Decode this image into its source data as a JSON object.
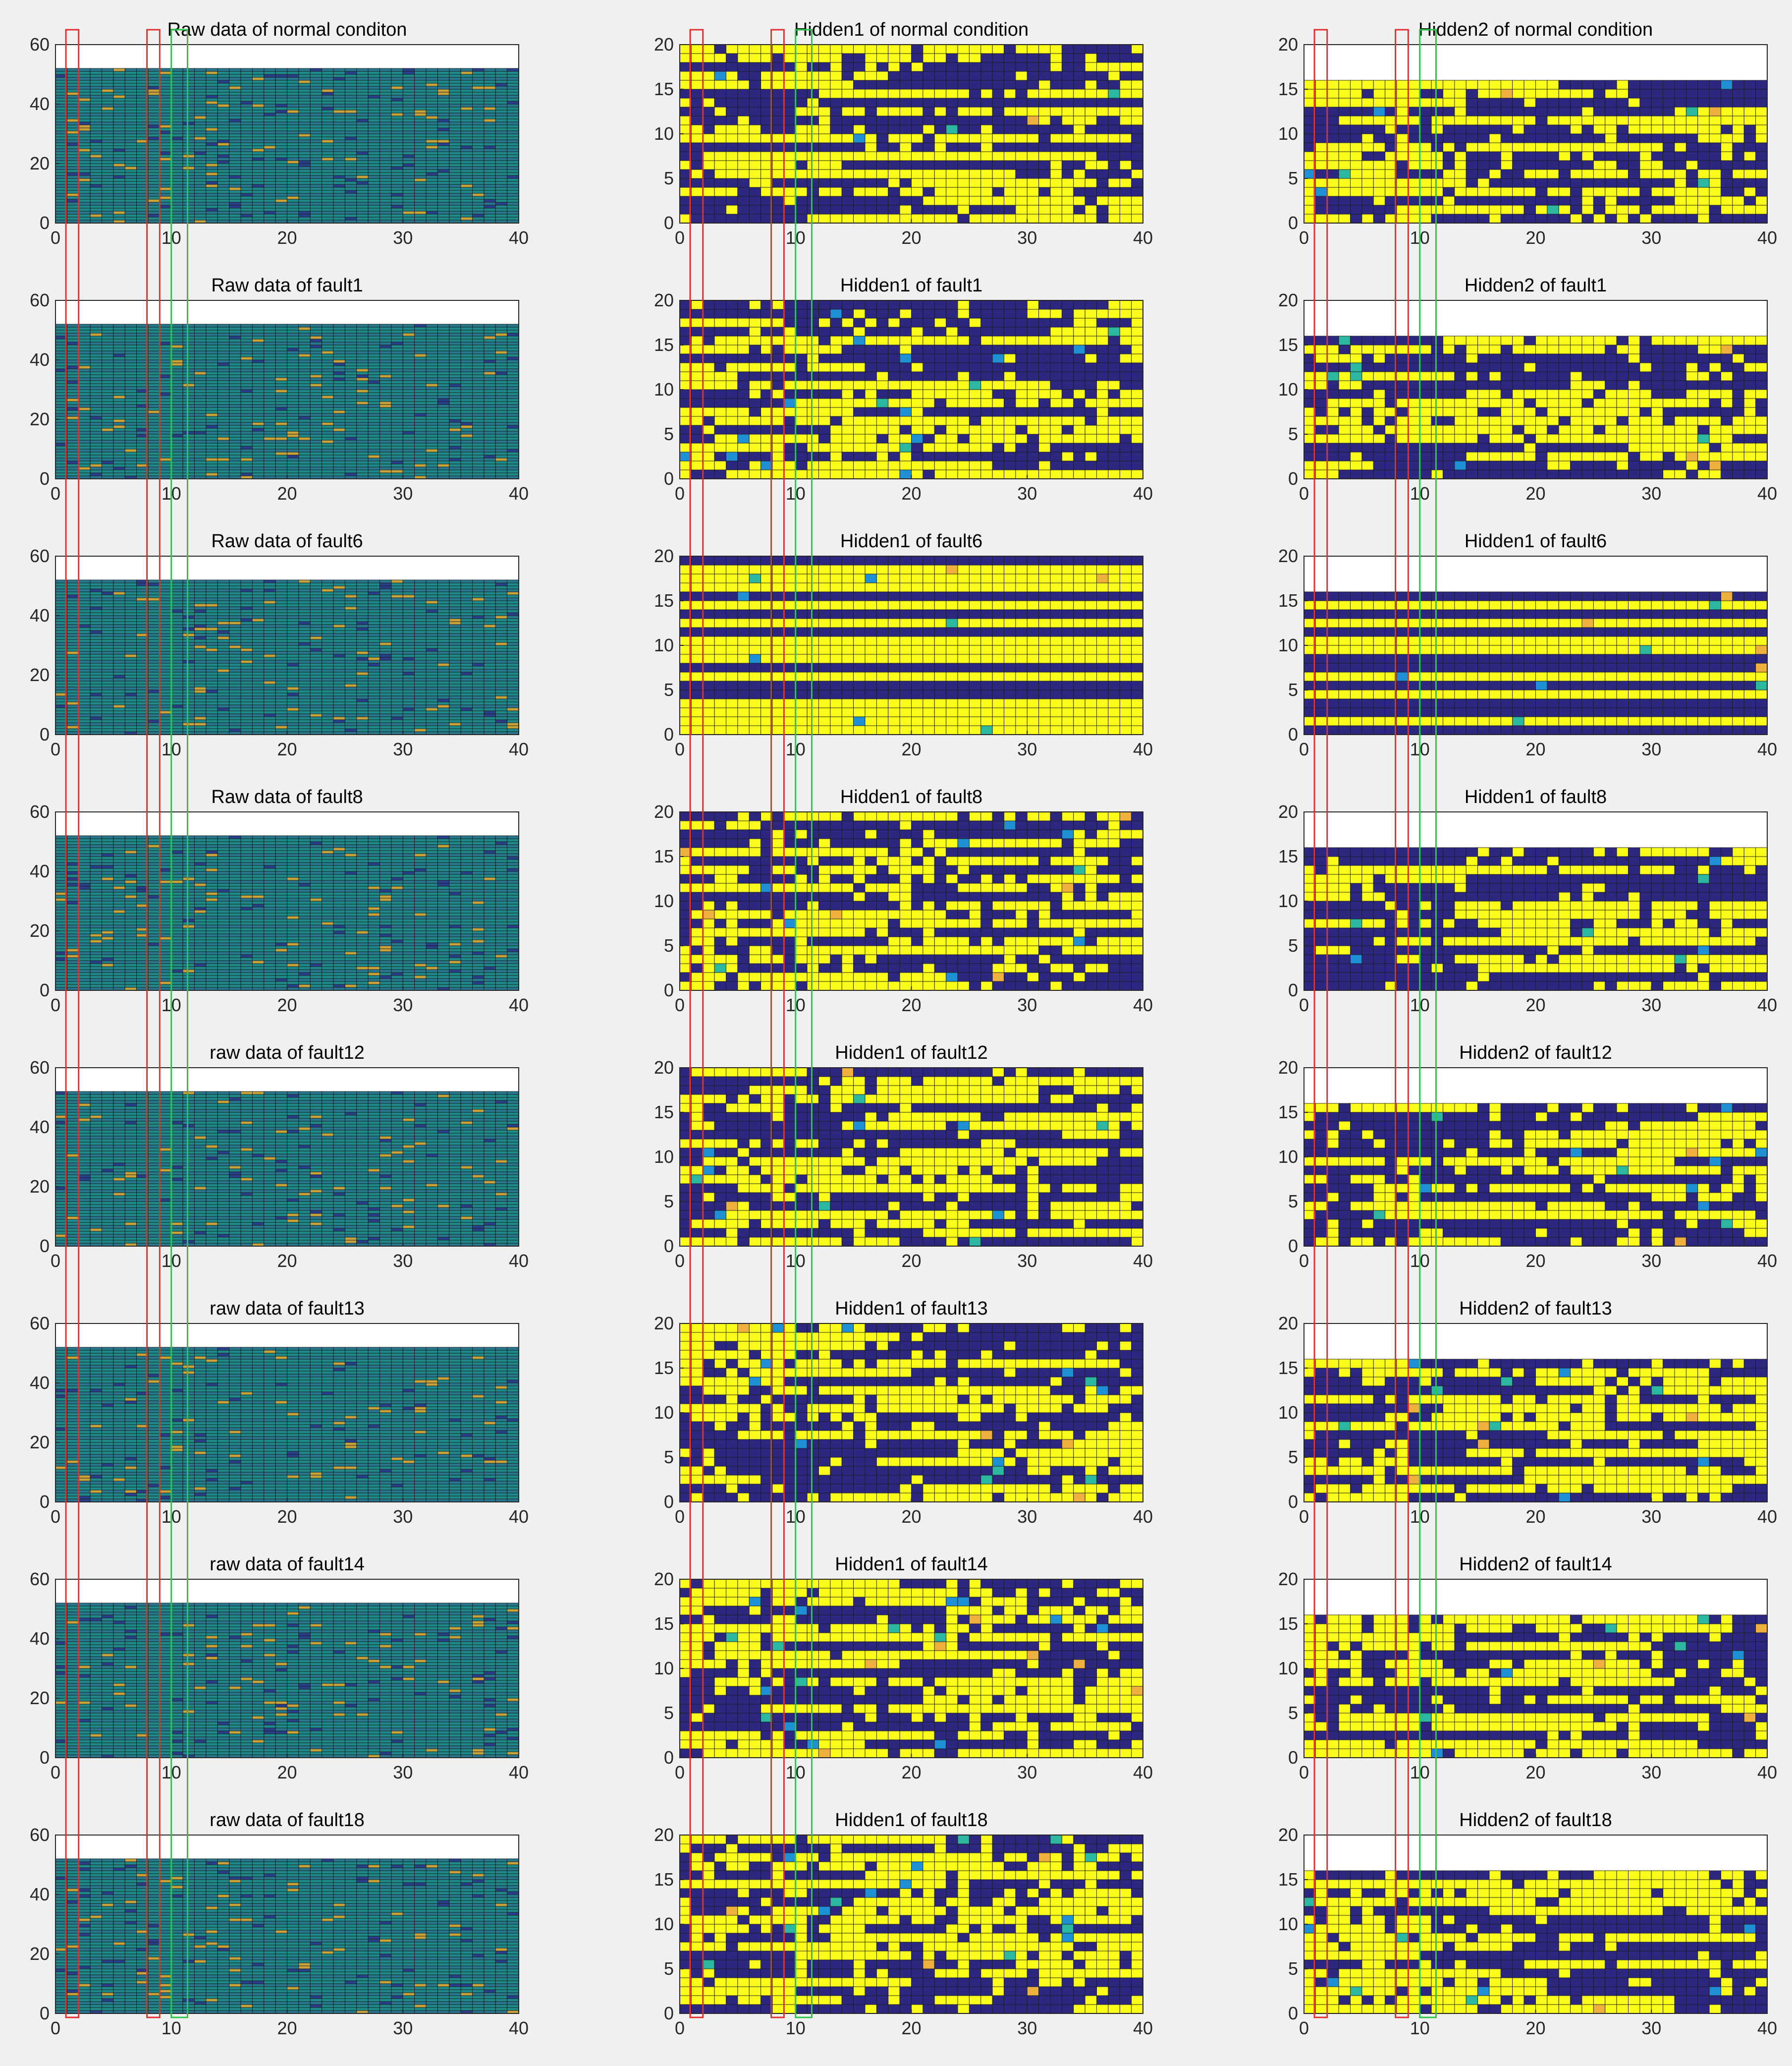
{
  "colors": {
    "figure_bg": "#f0f0f0",
    "axes_bg": "#ffffff",
    "cell_edge": "#1a1a1a",
    "raw_base": "#1e8a8a",
    "raw_alt": "#27778f",
    "raw_dark": "#2a3f8c",
    "raw_hot": "#c8a23a",
    "hidden_on": "#fcfc1c",
    "hidden_off": "#2c2880",
    "hidden_mid_blue": "#1f8fd6",
    "hidden_mid_teal": "#2bb7a0",
    "hidden_mid_orange": "#f0b040",
    "box_red": "#e03030",
    "box_green": "#2ec44a"
  },
  "chart_data": [
    {
      "type": "heatmap",
      "title": "Raw data of normal conditon",
      "xlim": [
        0,
        40
      ],
      "ylim": [
        0,
        60
      ],
      "xticks": [
        0,
        10,
        20,
        30,
        40
      ],
      "yticks": [
        0,
        20,
        40,
        60
      ],
      "cols": 40,
      "rows": 52,
      "kind": "raw",
      "seed": 11
    },
    {
      "type": "heatmap",
      "title": "Hidden1 of normal condition",
      "xlim": [
        0,
        40
      ],
      "ylim": [
        0,
        20
      ],
      "xticks": [
        0,
        10,
        20,
        30,
        40
      ],
      "yticks": [
        0,
        5,
        10,
        15,
        20
      ],
      "cols": 40,
      "rows": 20,
      "kind": "hidden",
      "seed": 21
    },
    {
      "type": "heatmap",
      "title": "Hidden2 of normal condition",
      "xlim": [
        0,
        40
      ],
      "ylim": [
        0,
        20
      ],
      "xticks": [
        0,
        10,
        20,
        30,
        40
      ],
      "yticks": [
        0,
        5,
        10,
        15,
        20
      ],
      "cols": 40,
      "rows": 16,
      "kind": "hidden",
      "seed": 31
    },
    {
      "type": "heatmap",
      "title": "Raw data of fault1",
      "xlim": [
        0,
        40
      ],
      "ylim": [
        0,
        60
      ],
      "xticks": [
        0,
        10,
        20,
        30,
        40
      ],
      "yticks": [
        0,
        20,
        40,
        60
      ],
      "cols": 40,
      "rows": 52,
      "kind": "raw",
      "seed": 12
    },
    {
      "type": "heatmap",
      "title": "Hidden1 of fault1",
      "xlim": [
        0,
        40
      ],
      "ylim": [
        0,
        20
      ],
      "xticks": [
        0,
        10,
        20,
        30,
        40
      ],
      "yticks": [
        0,
        5,
        10,
        15,
        20
      ],
      "cols": 40,
      "rows": 20,
      "kind": "hidden",
      "seed": 22
    },
    {
      "type": "heatmap",
      "title": "Hidden2 of fault1",
      "xlim": [
        0,
        40
      ],
      "ylim": [
        0,
        20
      ],
      "xticks": [
        0,
        10,
        20,
        30,
        40
      ],
      "yticks": [
        0,
        5,
        10,
        15,
        20
      ],
      "cols": 40,
      "rows": 16,
      "kind": "hidden",
      "seed": 32
    },
    {
      "type": "heatmap",
      "title": "Raw data of fault6",
      "xlim": [
        0,
        40
      ],
      "ylim": [
        0,
        60
      ],
      "xticks": [
        0,
        10,
        20,
        30,
        40
      ],
      "yticks": [
        0,
        20,
        40,
        60
      ],
      "cols": 40,
      "rows": 52,
      "kind": "raw",
      "seed": 13
    },
    {
      "type": "heatmap",
      "title": "Hidden1 of fault6",
      "xlim": [
        0,
        40
      ],
      "ylim": [
        0,
        20
      ],
      "xticks": [
        0,
        10,
        20,
        30,
        40
      ],
      "yticks": [
        0,
        5,
        10,
        15,
        20
      ],
      "cols": 40,
      "rows": 20,
      "kind": "hidden",
      "seed": 23,
      "striped": true
    },
    {
      "type": "heatmap",
      "title": "Hidden1 of fault6",
      "xlim": [
        0,
        40
      ],
      "ylim": [
        0,
        20
      ],
      "xticks": [
        0,
        10,
        20,
        30,
        40
      ],
      "yticks": [
        0,
        5,
        10,
        15,
        20
      ],
      "cols": 40,
      "rows": 16,
      "kind": "hidden",
      "seed": 33,
      "striped": true
    },
    {
      "type": "heatmap",
      "title": "Raw data of fault8",
      "xlim": [
        0,
        40
      ],
      "ylim": [
        0,
        60
      ],
      "xticks": [
        0,
        10,
        20,
        30,
        40
      ],
      "yticks": [
        0,
        20,
        40,
        60
      ],
      "cols": 40,
      "rows": 52,
      "kind": "raw",
      "seed": 14
    },
    {
      "type": "heatmap",
      "title": "Hidden1 of fault8",
      "xlim": [
        0,
        40
      ],
      "ylim": [
        0,
        20
      ],
      "xticks": [
        0,
        10,
        20,
        30,
        40
      ],
      "yticks": [
        0,
        5,
        10,
        15,
        20
      ],
      "cols": 40,
      "rows": 20,
      "kind": "hidden",
      "seed": 24
    },
    {
      "type": "heatmap",
      "title": "Hidden1 of fault8",
      "xlim": [
        0,
        40
      ],
      "ylim": [
        0,
        20
      ],
      "xticks": [
        0,
        10,
        20,
        30,
        40
      ],
      "yticks": [
        0,
        5,
        10,
        15,
        20
      ],
      "cols": 40,
      "rows": 16,
      "kind": "hidden",
      "seed": 34
    },
    {
      "type": "heatmap",
      "title": "raw data of fault12",
      "xlim": [
        0,
        40
      ],
      "ylim": [
        0,
        60
      ],
      "xticks": [
        0,
        10,
        20,
        30,
        40
      ],
      "yticks": [
        0,
        20,
        40,
        60
      ],
      "cols": 40,
      "rows": 52,
      "kind": "raw",
      "seed": 15
    },
    {
      "type": "heatmap",
      "title": "Hidden1 of fault12",
      "xlim": [
        0,
        40
      ],
      "ylim": [
        0,
        20
      ],
      "xticks": [
        0,
        10,
        20,
        30,
        40
      ],
      "yticks": [
        0,
        5,
        10,
        15,
        20
      ],
      "cols": 40,
      "rows": 20,
      "kind": "hidden",
      "seed": 25
    },
    {
      "type": "heatmap",
      "title": "Hidden2 of fault12",
      "xlim": [
        0,
        40
      ],
      "ylim": [
        0,
        20
      ],
      "xticks": [
        0,
        10,
        20,
        30,
        40
      ],
      "yticks": [
        0,
        5,
        10,
        15,
        20
      ],
      "cols": 40,
      "rows": 16,
      "kind": "hidden",
      "seed": 35
    },
    {
      "type": "heatmap",
      "title": "raw data of fault13",
      "xlim": [
        0,
        40
      ],
      "ylim": [
        0,
        60
      ],
      "xticks": [
        0,
        10,
        20,
        30,
        40
      ],
      "yticks": [
        0,
        20,
        40,
        60
      ],
      "cols": 40,
      "rows": 52,
      "kind": "raw",
      "seed": 16
    },
    {
      "type": "heatmap",
      "title": "Hidden1 of fault13",
      "xlim": [
        0,
        40
      ],
      "ylim": [
        0,
        20
      ],
      "xticks": [
        0,
        10,
        20,
        30,
        40
      ],
      "yticks": [
        0,
        5,
        10,
        15,
        20
      ],
      "cols": 40,
      "rows": 20,
      "kind": "hidden",
      "seed": 26
    },
    {
      "type": "heatmap",
      "title": "Hidden2 of fault13",
      "xlim": [
        0,
        40
      ],
      "ylim": [
        0,
        20
      ],
      "xticks": [
        0,
        10,
        20,
        30,
        40
      ],
      "yticks": [
        0,
        5,
        10,
        15,
        20
      ],
      "cols": 40,
      "rows": 16,
      "kind": "hidden",
      "seed": 36
    },
    {
      "type": "heatmap",
      "title": "raw data of fault14",
      "xlim": [
        0,
        40
      ],
      "ylim": [
        0,
        60
      ],
      "xticks": [
        0,
        10,
        20,
        30,
        40
      ],
      "yticks": [
        0,
        20,
        40,
        60
      ],
      "cols": 40,
      "rows": 52,
      "kind": "raw",
      "seed": 17
    },
    {
      "type": "heatmap",
      "title": "Hidden1 of fault14",
      "xlim": [
        0,
        40
      ],
      "ylim": [
        0,
        20
      ],
      "xticks": [
        0,
        10,
        20,
        30,
        40
      ],
      "yticks": [
        0,
        5,
        10,
        15,
        20
      ],
      "cols": 40,
      "rows": 20,
      "kind": "hidden",
      "seed": 27
    },
    {
      "type": "heatmap",
      "title": "Hidden2 of fault14",
      "xlim": [
        0,
        40
      ],
      "ylim": [
        0,
        20
      ],
      "xticks": [
        0,
        10,
        20,
        30,
        40
      ],
      "yticks": [
        0,
        5,
        10,
        15,
        20
      ],
      "cols": 40,
      "rows": 16,
      "kind": "hidden",
      "seed": 37
    },
    {
      "type": "heatmap",
      "title": "raw data of fault18",
      "xlim": [
        0,
        40
      ],
      "ylim": [
        0,
        60
      ],
      "xticks": [
        0,
        10,
        20,
        30,
        40
      ],
      "yticks": [
        0,
        20,
        40,
        60
      ],
      "cols": 40,
      "rows": 52,
      "kind": "raw",
      "seed": 18
    },
    {
      "type": "heatmap",
      "title": "Hidden1 of fault18",
      "xlim": [
        0,
        40
      ],
      "ylim": [
        0,
        20
      ],
      "xticks": [
        0,
        10,
        20,
        30,
        40
      ],
      "yticks": [
        0,
        5,
        10,
        15,
        20
      ],
      "cols": 40,
      "rows": 20,
      "kind": "hidden",
      "seed": 28
    },
    {
      "type": "heatmap",
      "title": "Hidden2 of fault18",
      "xlim": [
        0,
        40
      ],
      "ylim": [
        0,
        20
      ],
      "xticks": [
        0,
        10,
        20,
        30,
        40
      ],
      "yticks": [
        0,
        5,
        10,
        15,
        20
      ],
      "cols": 40,
      "rows": 16,
      "kind": "hidden",
      "seed": 38
    }
  ],
  "highlight_boxes": [
    {
      "color": "box_red",
      "x_range": [
        0.9,
        2.0
      ]
    },
    {
      "color": "box_red",
      "x_range": [
        7.9,
        9.0
      ]
    },
    {
      "color": "box_green",
      "x_range": [
        10.0,
        11.4
      ]
    }
  ]
}
